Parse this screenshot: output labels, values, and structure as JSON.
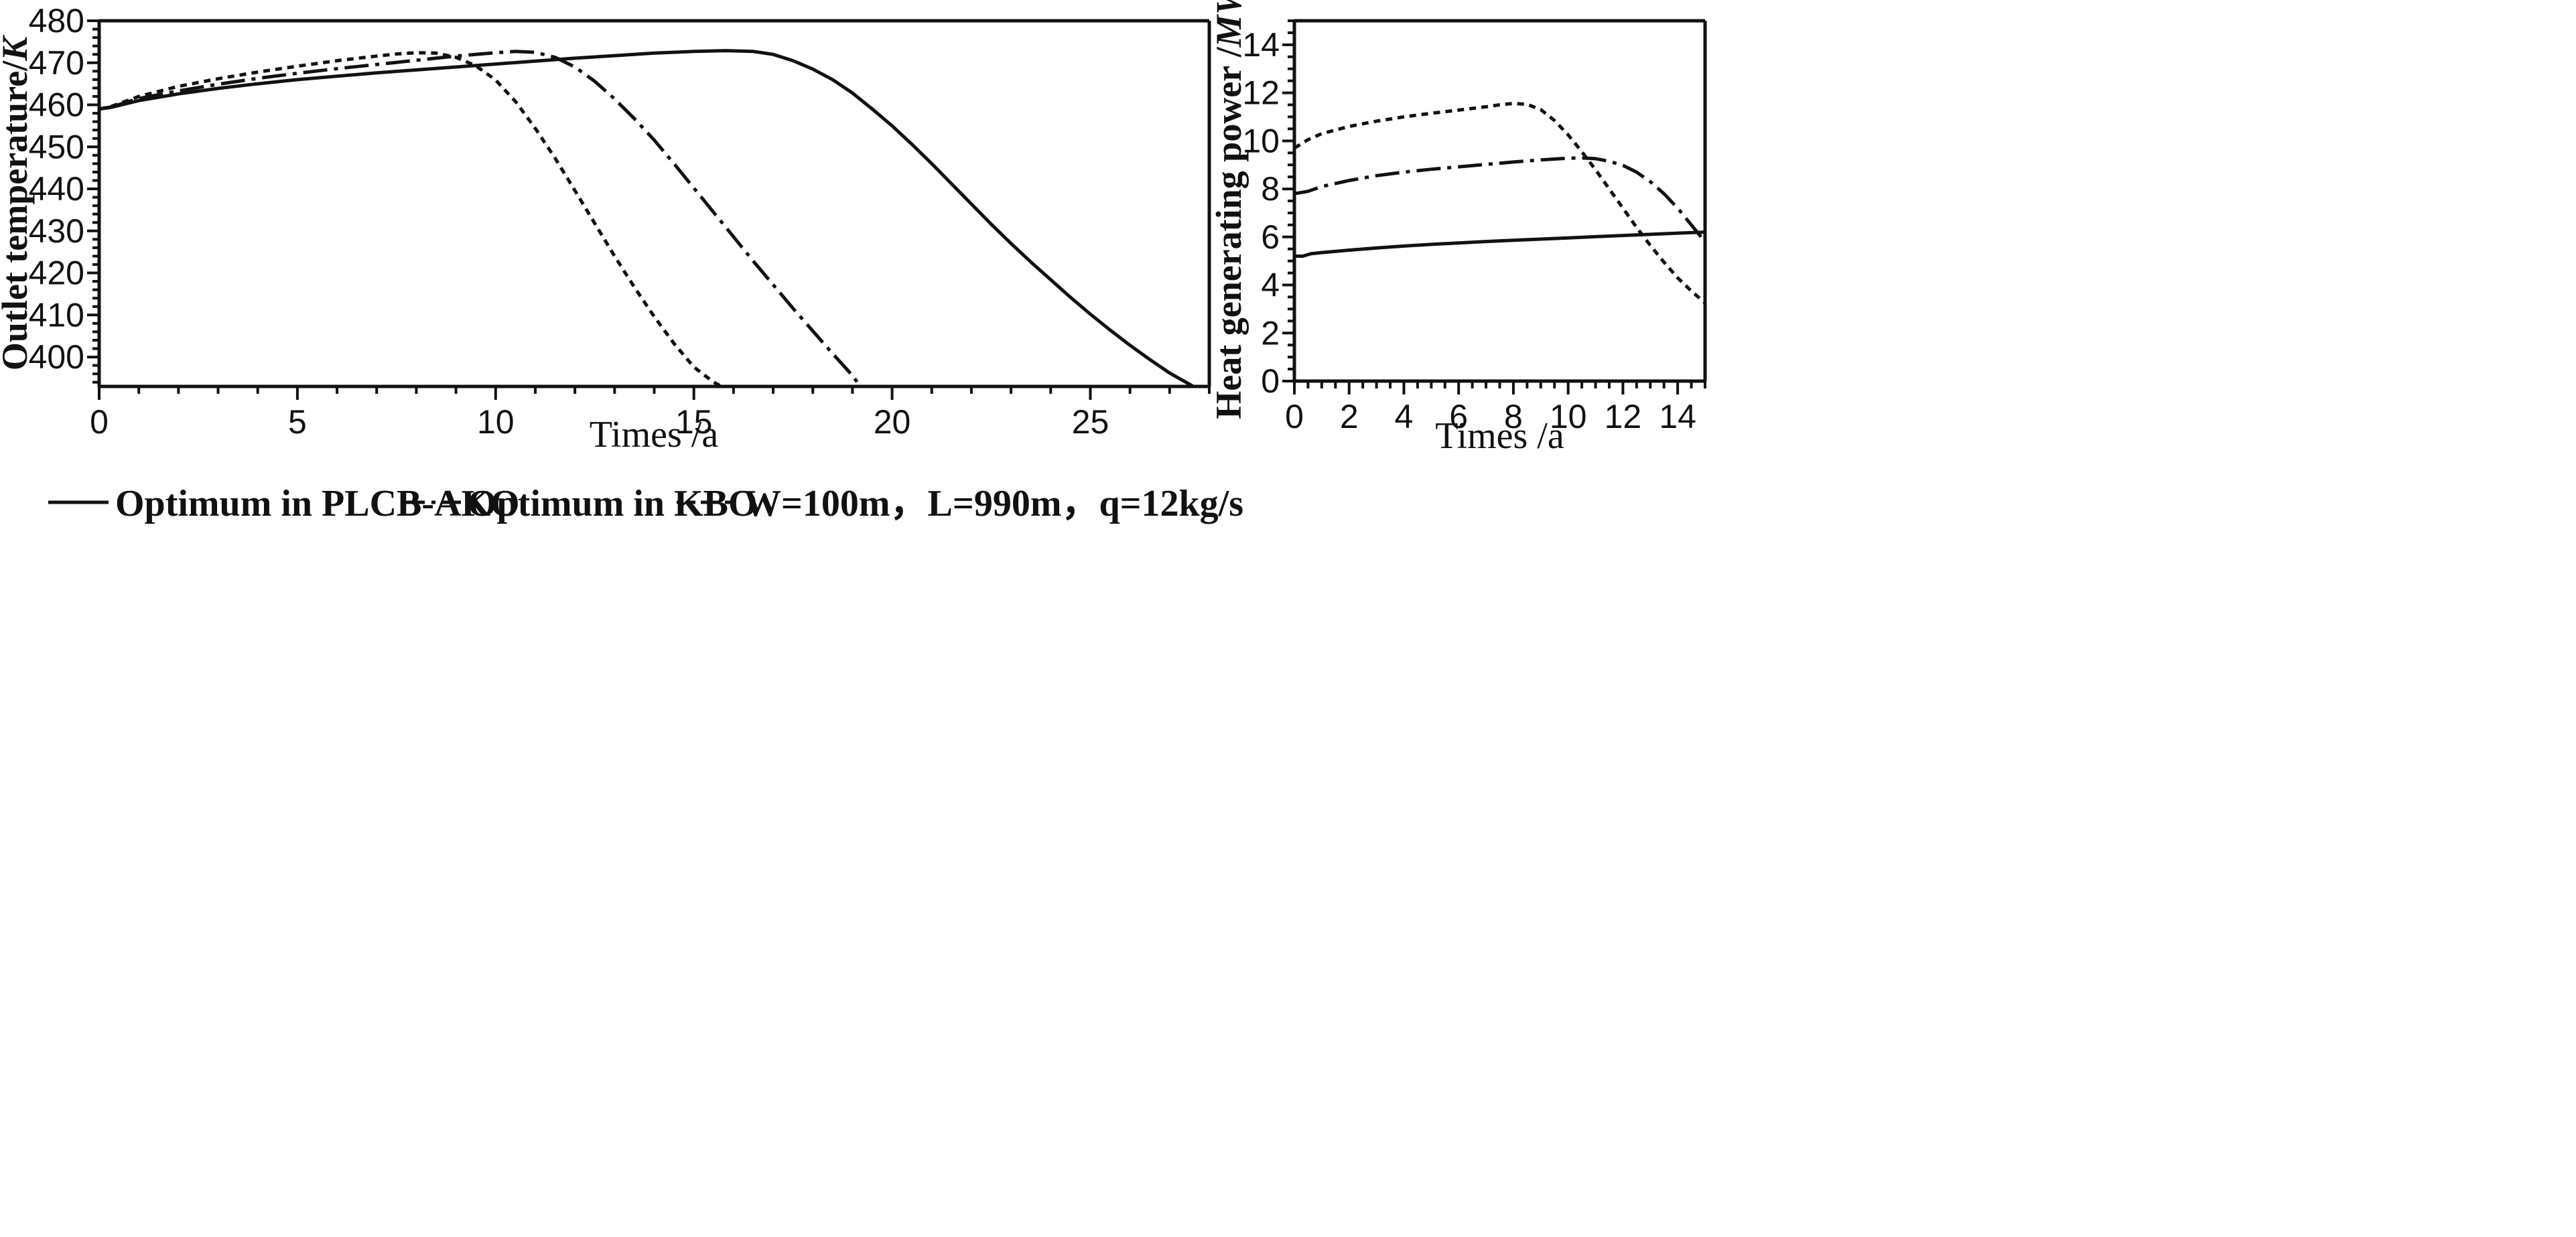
{
  "chart_data": [
    {
      "type": "line",
      "xlabel": "Times /a",
      "ylabel_main": "Outlet temperature/",
      "ylabel_unit": "K",
      "xlim": [
        0,
        28
      ],
      "ylim": [
        393,
        480
      ],
      "xticks": [
        0,
        5,
        10,
        15,
        20,
        25
      ],
      "yticks": [
        400,
        410,
        420,
        430,
        440,
        450,
        460,
        470,
        480
      ],
      "series": [
        {
          "name": "Optimum in PLCB-AKO",
          "style": "solid",
          "x": [
            0,
            0.3,
            1,
            2,
            3,
            4,
            5,
            6,
            7,
            8,
            9,
            10,
            11,
            12,
            13,
            14,
            15,
            15.8,
            16.5,
            17,
            17.5,
            18,
            18.5,
            19,
            19.5,
            20,
            20.5,
            21,
            21.5,
            22,
            22.5,
            23,
            23.5,
            24,
            24.5,
            25,
            25.5,
            26,
            26.5,
            27,
            27.6
          ],
          "y": [
            459,
            459.4,
            461,
            462.6,
            463.9,
            465,
            466,
            466.8,
            467.6,
            468.3,
            469,
            469.7,
            470.4,
            471.1,
            471.7,
            472.3,
            472.7,
            472.9,
            472.7,
            472,
            470.5,
            468.5,
            466,
            462.8,
            459,
            455,
            450.6,
            446,
            441.2,
            436.4,
            431.6,
            427,
            422.6,
            418.4,
            414.2,
            410.2,
            406.4,
            402.8,
            399.4,
            396.2,
            393
          ]
        },
        {
          "name": "Optimum in KBO",
          "style": "dashdot",
          "x": [
            0,
            0.3,
            1,
            2,
            3,
            4,
            5,
            6,
            7,
            8,
            9,
            10,
            10.5,
            11,
            11.5,
            12,
            12.5,
            13,
            13.5,
            14,
            14.5,
            15,
            15.5,
            16,
            16.5,
            17,
            17.5,
            18,
            18.5,
            19,
            19.2
          ],
          "y": [
            459,
            459.5,
            461.5,
            463.3,
            464.9,
            466.3,
            467.5,
            468.6,
            469.6,
            470.6,
            471.6,
            472.4,
            472.7,
            472.5,
            471.3,
            469,
            465.6,
            461.4,
            456.7,
            451.6,
            446,
            440.2,
            434.4,
            428.6,
            422.8,
            417.2,
            411.6,
            406.2,
            400.8,
            395.6,
            393
          ]
        },
        {
          "name": "W=100m，L=990m，q=12kg/s",
          "style": "dashed",
          "x": [
            0,
            0.3,
            1,
            2,
            3,
            4,
            5,
            6,
            7,
            7.5,
            8,
            8.5,
            9,
            9.5,
            10,
            10.5,
            11,
            11.5,
            12,
            12.5,
            13,
            13.5,
            14,
            14.5,
            15,
            15.5,
            15.7
          ],
          "y": [
            459,
            459.6,
            462,
            464.4,
            466.2,
            467.8,
            469.2,
            470.5,
            471.6,
            472.1,
            472.4,
            472.3,
            471.3,
            469.3,
            465.9,
            460.8,
            454.4,
            447.3,
            439.6,
            431.8,
            424,
            416.6,
            409.6,
            403.2,
            397.6,
            394,
            393
          ]
        }
      ]
    },
    {
      "type": "line",
      "xlabel": "Times /a",
      "ylabel_main": "Heat generating power /",
      "ylabel_unit": "MW",
      "xlim": [
        0,
        15
      ],
      "ylim": [
        0,
        15
      ],
      "xticks": [
        0,
        2,
        4,
        6,
        8,
        10,
        12,
        14
      ],
      "yticks": [
        0,
        2,
        4,
        6,
        8,
        10,
        12,
        14
      ],
      "series": [
        {
          "name": "Optimum in PLCB-AKO",
          "style": "solid",
          "x": [
            0,
            0.3,
            0.6,
            1,
            2,
            3,
            4,
            5,
            6,
            7,
            8,
            9,
            10,
            11,
            12,
            13,
            14,
            15
          ],
          "y": [
            5.2,
            5.2,
            5.3,
            5.35,
            5.45,
            5.54,
            5.62,
            5.69,
            5.75,
            5.81,
            5.86,
            5.91,
            5.96,
            6.01,
            6.06,
            6.11,
            6.16,
            6.2
          ]
        },
        {
          "name": "Optimum in KBO",
          "style": "dashdot",
          "x": [
            0,
            0.5,
            1,
            2,
            3,
            4,
            5,
            6,
            7,
            8,
            9,
            10,
            10.5,
            11,
            11.5,
            12,
            12.5,
            13,
            13.5,
            14,
            14.5,
            15
          ],
          "y": [
            7.8,
            7.9,
            8.1,
            8.35,
            8.55,
            8.7,
            8.82,
            8.92,
            9.02,
            9.12,
            9.21,
            9.28,
            9.29,
            9.26,
            9.15,
            8.98,
            8.7,
            8.3,
            7.8,
            7.2,
            6.5,
            5.8
          ]
        },
        {
          "name": "W=100m，L=990m，q=12kg/s",
          "style": "dashed",
          "x": [
            0,
            0.5,
            1,
            2,
            3,
            4,
            5,
            6,
            7,
            7.5,
            8,
            8.5,
            9,
            9.5,
            10,
            10.5,
            11,
            11.5,
            12,
            12.5,
            13,
            13.5,
            14,
            14.5,
            15
          ],
          "y": [
            9.7,
            10.05,
            10.3,
            10.6,
            10.82,
            11.0,
            11.15,
            11.28,
            11.42,
            11.5,
            11.56,
            11.52,
            11.3,
            10.85,
            10.25,
            9.55,
            8.8,
            8.0,
            7.2,
            6.4,
            5.65,
            4.95,
            4.3,
            3.75,
            3.25
          ]
        }
      ]
    }
  ],
  "legend": [
    {
      "label": "Optimum in PLCB-AKO",
      "style": "solid"
    },
    {
      "label": "Optimum in KBO",
      "style": "dashdot"
    },
    {
      "label": "W=100m，L=990m，q=12kg/s",
      "style": "dashed"
    }
  ]
}
